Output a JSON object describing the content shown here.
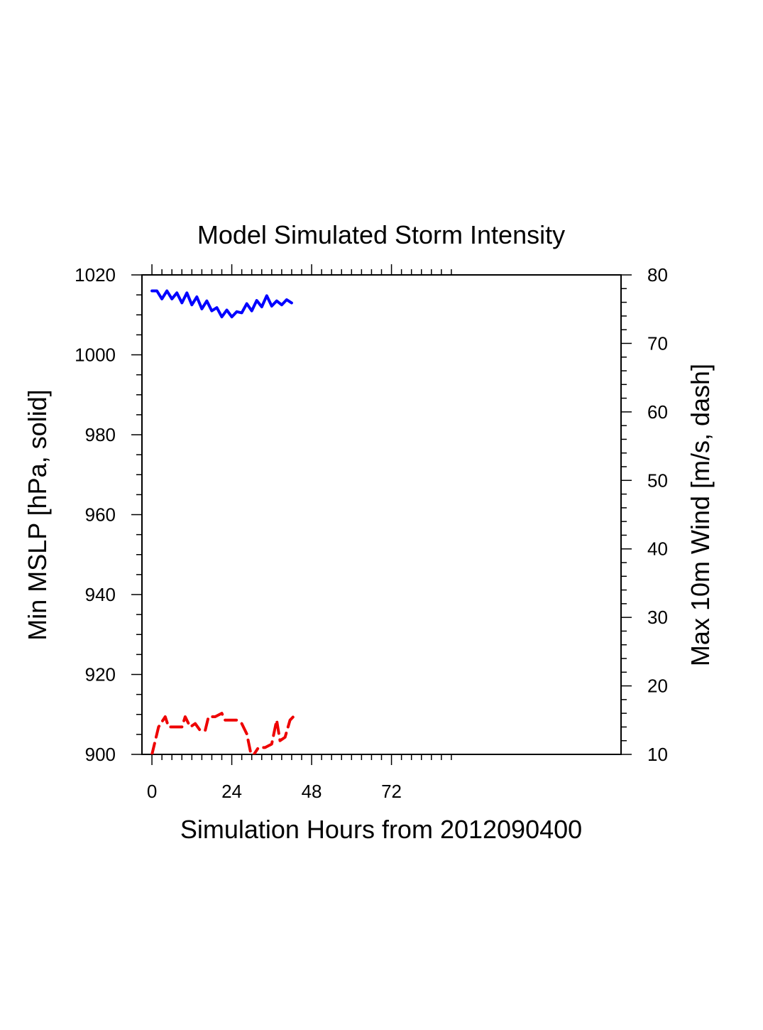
{
  "chart_data": {
    "type": "line",
    "title": "Model Simulated Storm Intensity",
    "xlabel": "Simulation Hours from 2012090400",
    "ylabel_left": "Min MSLP  [hPa, solid]",
    "ylabel_right": "Max 10m Wind  [m/s, dash]",
    "xlim": [
      -3,
      141
    ],
    "ylim_left": [
      900,
      1020
    ],
    "ylim_right": [
      10,
      80
    ],
    "x_ticks": [
      0,
      24,
      48,
      72
    ],
    "y_ticks_left": [
      900,
      920,
      940,
      960,
      980,
      1000,
      1020
    ],
    "y_ticks_right": [
      10,
      20,
      30,
      40,
      50,
      60,
      70,
      80
    ],
    "grid": false,
    "series": [
      {
        "axis": "left",
        "style": "solid",
        "color": "#0000ff",
        "x": [
          0,
          1.5,
          3,
          4.5,
          6,
          7.5,
          9,
          10.5,
          12,
          13.5,
          15,
          16.5,
          18,
          19.5,
          21,
          22.5,
          24,
          25.5,
          27,
          28.5,
          30,
          31.5,
          33,
          34.5,
          36,
          37.5,
          39,
          40.5,
          42
        ],
        "values": [
          1016,
          1016,
          1014,
          1016,
          1014,
          1015.5,
          1013,
          1015.5,
          1012.5,
          1014.5,
          1011.5,
          1013.5,
          1011,
          1011.8,
          1009.5,
          1011.2,
          1009.5,
          1010.8,
          1010.5,
          1012.8,
          1011,
          1013.6,
          1012,
          1014.8,
          1012.2,
          1013.5,
          1012.5,
          1013.8,
          1013
        ]
      },
      {
        "axis": "right",
        "style": "dash",
        "color": "#ee0000",
        "x": [
          0,
          2,
          4,
          5,
          7,
          9,
          10,
          11.5,
          13,
          14.5,
          16,
          17,
          19,
          21,
          22,
          24,
          25.5,
          27,
          28.5,
          30,
          32,
          34,
          36,
          37.5,
          38.5,
          40,
          41.5,
          42.5
        ],
        "values": [
          10,
          14,
          15.5,
          14,
          14,
          14,
          15.5,
          14,
          14.5,
          13.5,
          13.5,
          15.5,
          15.5,
          16,
          15,
          15,
          15,
          14.5,
          13,
          9.5,
          11,
          11,
          11.5,
          15,
          12,
          12.5,
          15,
          15.5
        ]
      }
    ]
  }
}
